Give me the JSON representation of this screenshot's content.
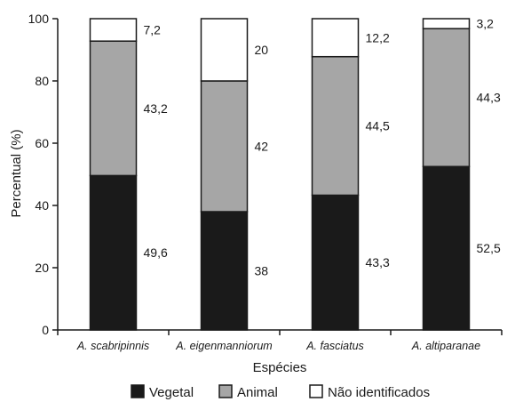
{
  "chart_data": {
    "type": "bar",
    "stacked": true,
    "categories": [
      "A. scabripinnis",
      "A. eigenmanniorum",
      "A. fasciatus",
      "A. altiparanae"
    ],
    "series": [
      {
        "name": "Vegetal",
        "values": [
          49.6,
          38,
          43.3,
          52.5
        ],
        "labels": [
          "49,6",
          "38",
          "43,3",
          "52,5"
        ],
        "color": "#1a1a1a"
      },
      {
        "name": "Animal",
        "values": [
          43.2,
          42,
          44.5,
          44.3
        ],
        "labels": [
          "43,2",
          "42",
          "44,5",
          "44,3"
        ],
        "color": "#a6a6a6"
      },
      {
        "name": "Não identificados",
        "values": [
          7.2,
          20,
          12.2,
          3.2
        ],
        "labels": [
          "7,2",
          "20",
          "12,2",
          "3,2"
        ],
        "color": "#ffffff"
      }
    ],
    "xlabel": "Espécies",
    "ylabel": "Percentual (%)",
    "ylim": [
      0,
      100
    ],
    "yticks": [
      0,
      20,
      40,
      60,
      80,
      100
    ],
    "grid": false,
    "legend_position": "bottom"
  }
}
